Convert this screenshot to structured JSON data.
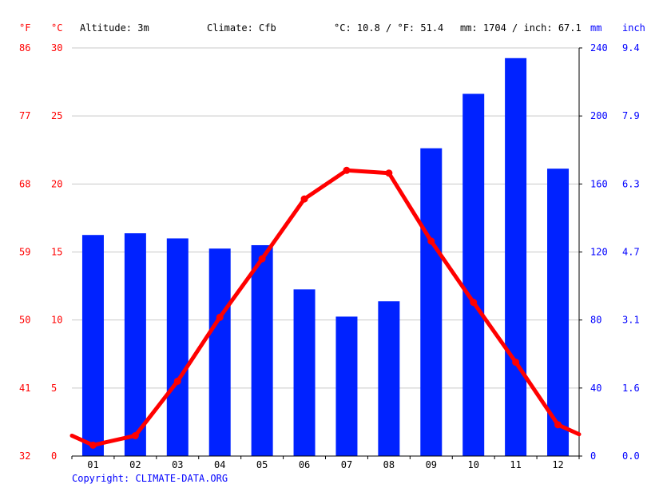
{
  "header": {
    "altitude": "Altitude: 3m",
    "climate": "Climate: Cfb",
    "temperature_avg": "°C: 10.8 / °F: 51.4",
    "precipitation_total": "mm: 1704 / inch: 67.1"
  },
  "units": {
    "fahrenheit": "°F",
    "celsius": "°C",
    "millimeters": "mm",
    "inches": "inch"
  },
  "copyright": "Copyright: CLIMATE-DATA.ORG",
  "colors": {
    "precipitation": "#0022ff",
    "temperature": "#ff0000",
    "temp_axis": "#ff0000",
    "precip_axis": "#0000ff",
    "grid": "#c8c8c8"
  },
  "chart_data": {
    "type": "bar+line",
    "categories": [
      "01",
      "02",
      "03",
      "04",
      "05",
      "06",
      "07",
      "08",
      "09",
      "10",
      "11",
      "12"
    ],
    "series": [
      {
        "name": "Precipitation",
        "axis": "right",
        "unit": "mm",
        "type": "bar",
        "values": [
          130,
          131,
          128,
          122,
          124,
          98,
          82,
          91,
          181,
          213,
          234,
          169
        ]
      },
      {
        "name": "Temperature",
        "axis": "left",
        "unit": "°C",
        "type": "line",
        "values": [
          0.8,
          1.5,
          5.5,
          10.2,
          14.5,
          18.9,
          21.0,
          20.8,
          15.8,
          11.3,
          6.9,
          2.3
        ],
        "edge_values": [
          1.5,
          1.6
        ]
      }
    ],
    "y_left_celsius_ticks": [
      "30",
      "25",
      "20",
      "15",
      "10",
      "5",
      "0"
    ],
    "y_left_fahrenheit_ticks": [
      "86",
      "77",
      "68",
      "59",
      "50",
      "41",
      "32"
    ],
    "y_right_mm_ticks": [
      "240",
      "200",
      "160",
      "120",
      "80",
      "40",
      "0"
    ],
    "y_right_inch_ticks": [
      "9.4",
      "7.9",
      "6.3",
      "4.7",
      "3.1",
      "1.6",
      "0.0"
    ],
    "ylim_celsius": [
      0,
      30
    ],
    "ylim_mm": [
      0,
      240
    ],
    "grid": true
  }
}
